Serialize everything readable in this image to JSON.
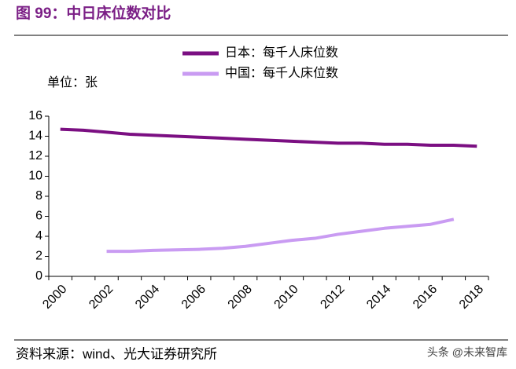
{
  "chart_data": {
    "type": "line",
    "title": "图 99：中日床位数对比",
    "y_unit_label": "单位：张",
    "source": "资料来源：wind、光大证券研究所",
    "watermark": "头条 @未来智库",
    "categories": [
      "2000",
      null,
      "2002",
      null,
      "2004",
      null,
      "2006",
      null,
      "2008",
      null,
      "2010",
      null,
      "2012",
      null,
      "2014",
      null,
      "2016",
      null,
      "2018"
    ],
    "series": [
      {
        "name": "日本：每千人床位数",
        "color": "#7b0f82",
        "values": [
          14.7,
          14.6,
          14.4,
          14.2,
          14.1,
          14.0,
          13.9,
          13.8,
          13.7,
          13.6,
          13.5,
          13.4,
          13.3,
          13.3,
          13.2,
          13.2,
          13.1,
          13.1,
          13.0
        ]
      },
      {
        "name": "中国：每千人床位数",
        "color": "#c99bf2",
        "values": [
          null,
          null,
          2.5,
          2.5,
          2.6,
          2.65,
          2.7,
          2.8,
          3.0,
          3.3,
          3.6,
          3.8,
          4.2,
          4.5,
          4.8,
          5.0,
          5.2,
          5.7,
          null
        ]
      }
    ],
    "ylim": [
      0,
      16
    ],
    "yticks": [
      0,
      2,
      4,
      6,
      8,
      10,
      12,
      14,
      16
    ]
  }
}
